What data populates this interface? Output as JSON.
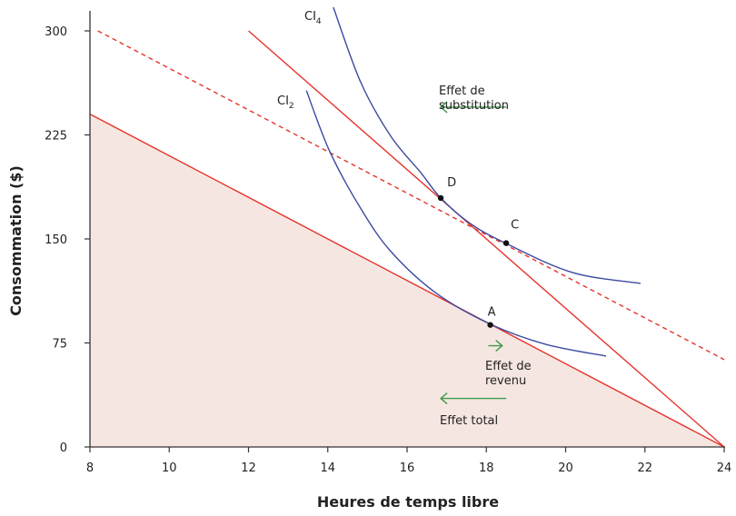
{
  "chart_data": {
    "type": "line",
    "xlabel": "Heures de temps libre",
    "ylabel": "Consommation ($)",
    "xlim": [
      8,
      24
    ],
    "ylim": [
      0,
      300
    ],
    "x_ticks": [
      "8",
      "10",
      "12",
      "14",
      "16",
      "18",
      "20",
      "22",
      "24"
    ],
    "y_ticks": [
      "0",
      "75",
      "150",
      "225",
      "300"
    ],
    "grid": false,
    "colors": {
      "budget": "#e5332a",
      "indifference": "#3c4aa0",
      "arrow": "#3f9a4c",
      "shade": "#f6e6e1",
      "axis": "#333333"
    },
    "budget_lines": [
      {
        "points": [
          [
            8,
            240
          ],
          [
            24,
            0
          ]
        ],
        "style": "solid",
        "shaded": true
      },
      {
        "points": [
          [
            12,
            300
          ],
          [
            24,
            0
          ]
        ],
        "style": "solid",
        "shaded": false
      },
      {
        "points": [
          [
            8.2,
            300
          ],
          [
            24,
            63
          ]
        ],
        "style": "dashed",
        "shaded": false
      }
    ],
    "indifference_curves": [
      {
        "name": "CI",
        "subscript": "2",
        "points": [
          [
            13.46,
            257
          ],
          [
            14.05,
            213
          ],
          [
            14.83,
            172
          ],
          [
            15.59,
            141
          ],
          [
            16.73,
            111
          ],
          [
            18.11,
            88.4
          ],
          [
            19.5,
            74
          ],
          [
            21.02,
            65.5
          ]
        ]
      },
      {
        "name": "CI",
        "subscript": "4",
        "points": [
          [
            14.14,
            317
          ],
          [
            14.83,
            263
          ],
          [
            15.59,
            224
          ],
          [
            16.34,
            198
          ],
          [
            16.85,
            179.5
          ],
          [
            17.6,
            161
          ],
          [
            18.5,
            146.7
          ],
          [
            20.17,
            125.8
          ],
          [
            21.89,
            117.9
          ]
        ]
      }
    ],
    "points": [
      {
        "label": "A",
        "x": 18.1,
        "y": 88
      },
      {
        "label": "D",
        "x": 16.85,
        "y": 179.5
      },
      {
        "label": "C",
        "x": 18.5,
        "y": 147
      }
    ],
    "arrows": [
      {
        "label_lines": [
          "Effet de",
          "substitution"
        ],
        "from": [
          18.5,
          245
        ],
        "to": [
          16.85,
          245
        ]
      },
      {
        "label_lines": [
          "Effet de",
          "revenu"
        ],
        "from": [
          18.05,
          73
        ],
        "to": [
          18.4,
          73
        ]
      },
      {
        "label_lines": [
          "Effet total"
        ],
        "from": [
          18.5,
          35
        ],
        "to": [
          16.85,
          35
        ]
      }
    ]
  }
}
